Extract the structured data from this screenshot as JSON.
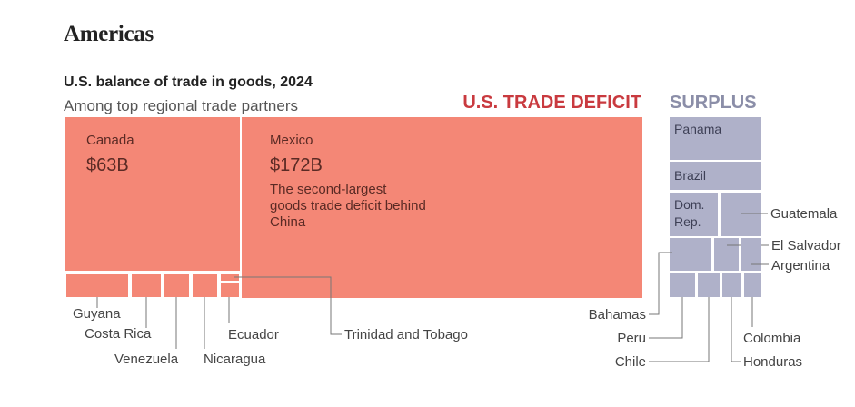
{
  "header": {
    "section_title": "Americas"
  },
  "chart_data": {
    "type": "treemap",
    "title": "U.S. balance of trade in goods, 2024",
    "subtitle": "Among top regional trade partners",
    "colors": {
      "deficit": "#f48776",
      "surplus": "#afb1c9",
      "deficit_label": "#c93a3f",
      "surplus_label": "#8b8ea8"
    },
    "groups": [
      {
        "name": "U.S. TRADE DEFICIT",
        "key": "deficit",
        "items": [
          {
            "name": "Canada",
            "value": 63,
            "value_label": "$63B"
          },
          {
            "name": "Mexico",
            "value": 172,
            "value_label": "$172B",
            "note": "The second-largest goods trade deficit behind China"
          },
          {
            "name": "Guyana"
          },
          {
            "name": "Costa Rica"
          },
          {
            "name": "Venezuela"
          },
          {
            "name": "Nicaragua"
          },
          {
            "name": "Ecuador"
          },
          {
            "name": "Trinidad and Tobago"
          }
        ]
      },
      {
        "name": "SURPLUS",
        "key": "surplus",
        "items": [
          {
            "name": "Panama"
          },
          {
            "name": "Brazil"
          },
          {
            "name": "Dom. Rep."
          },
          {
            "name": "Guatemala"
          },
          {
            "name": "Bahamas"
          },
          {
            "name": "El Salvador"
          },
          {
            "name": "Argentina"
          },
          {
            "name": "Peru"
          },
          {
            "name": "Chile"
          },
          {
            "name": "Honduras"
          },
          {
            "name": "Colombia"
          }
        ]
      }
    ]
  }
}
